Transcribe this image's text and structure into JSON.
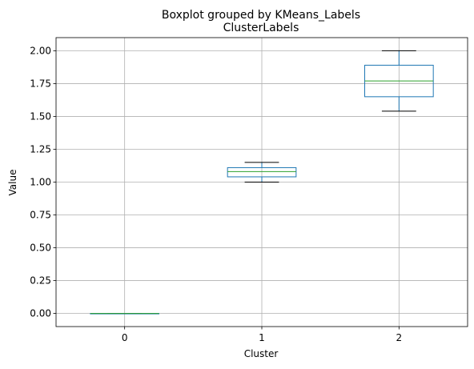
{
  "chart_data": {
    "type": "box",
    "suptitle": "Boxplot grouped by KMeans_Labels",
    "title": "ClusterLabels",
    "xlabel": "Cluster",
    "ylabel": "Value",
    "categories": [
      "0",
      "1",
      "2"
    ],
    "ylim": [
      -0.1,
      2.1
    ],
    "yticks": [
      0.0,
      0.25,
      0.5,
      0.75,
      1.0,
      1.25,
      1.5,
      1.75,
      2.0
    ],
    "ytick_labels": [
      "0.00",
      "0.25",
      "0.50",
      "0.75",
      "1.00",
      "1.25",
      "1.50",
      "1.75",
      "2.00"
    ],
    "grid": true,
    "boxes": [
      {
        "category": "0",
        "whisker_low": 0.0,
        "q1": 0.0,
        "median": 0.0,
        "q3": 0.0,
        "whisker_high": 0.0
      },
      {
        "category": "1",
        "whisker_low": 1.0,
        "q1": 1.04,
        "median": 1.08,
        "q3": 1.11,
        "whisker_high": 1.15
      },
      {
        "category": "2",
        "whisker_low": 1.54,
        "q1": 1.65,
        "median": 1.77,
        "q3": 1.89,
        "whisker_high": 2.0
      }
    ],
    "colors": {
      "box": "#1f77b4",
      "median": "#2ca02c",
      "whisker_cap": "#000000",
      "grid": "#b0b0b0"
    }
  }
}
